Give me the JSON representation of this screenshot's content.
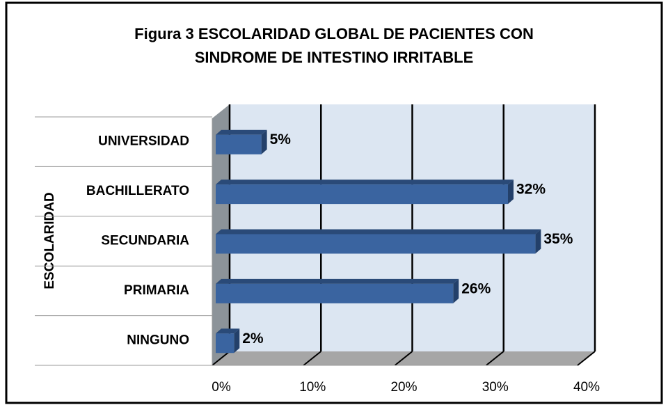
{
  "chart_data": {
    "type": "bar",
    "orientation": "horizontal",
    "title": [
      "Figura 3   ESCOLARIDAD GLOBAL DE PACIENTES CON",
      "SINDROME DE INTESTINO IRRITABLE"
    ],
    "y_label": "ESCOLARIDAD",
    "categories": [
      "NINGUNO",
      "PRIMARIA",
      "SECUNDARIA",
      "BACHILLERATO",
      "UNIVERSIDAD"
    ],
    "values": [
      2,
      26,
      35,
      32,
      5
    ],
    "value_labels": [
      "2%",
      "26%",
      "35%",
      "32%",
      "5%"
    ],
    "color": "#3a64a0",
    "xlim": [
      0,
      40
    ],
    "xticks": [
      {
        "value": 0,
        "label": "0%"
      },
      {
        "value": 10,
        "label": "10%"
      },
      {
        "value": 20,
        "label": "20%"
      },
      {
        "value": 30,
        "label": "30%"
      },
      {
        "value": 40,
        "label": "40%"
      }
    ],
    "grid": true
  }
}
